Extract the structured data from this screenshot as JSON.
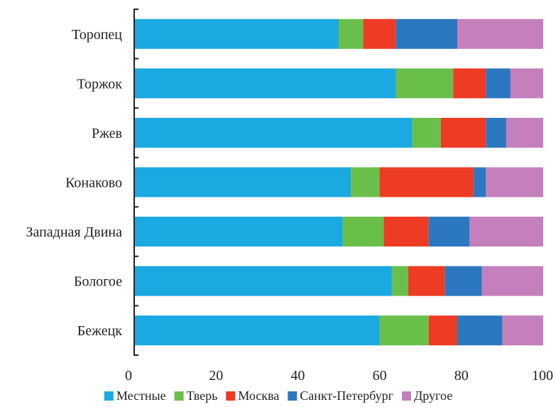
{
  "chart_data": {
    "type": "bar",
    "orientation": "horizontal",
    "stacked": true,
    "categories": [
      "Торопец",
      "Торжок",
      "Ржев",
      "Конаково",
      "Западная Двина",
      "Бологое",
      "Бежецк"
    ],
    "series": [
      {
        "name": "Местные",
        "color": "#1aa9e1",
        "values": [
          50,
          64,
          68,
          53,
          51,
          63,
          60
        ]
      },
      {
        "name": "Тверь",
        "color": "#6abf4b",
        "values": [
          6,
          14,
          7,
          7,
          10,
          4,
          12
        ]
      },
      {
        "name": "Москва",
        "color": "#ee3b24",
        "values": [
          8,
          8,
          11,
          23,
          11,
          9,
          7
        ]
      },
      {
        "name": "Санкт-Петербург",
        "color": "#2b78c0",
        "values": [
          15,
          6,
          5,
          3,
          10,
          9,
          11
        ]
      },
      {
        "name": "Другое",
        "color": "#c480bc",
        "values": [
          21,
          8,
          9,
          14,
          18,
          15,
          10
        ]
      }
    ],
    "xlim": [
      0,
      100
    ],
    "xticks": [
      "0",
      "20",
      "40",
      "60",
      "80",
      "100"
    ],
    "grid": false,
    "legend_position": "bottom"
  }
}
